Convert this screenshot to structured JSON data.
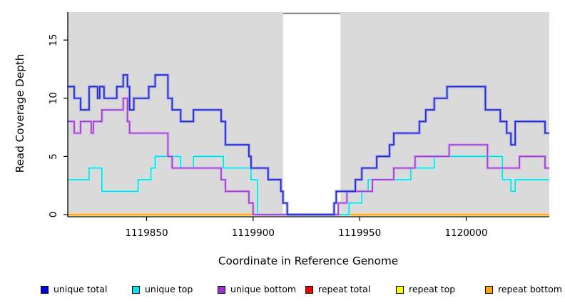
{
  "chart_data": {
    "type": "line",
    "step_interpolation": true,
    "title": "",
    "xlabel": "Coordinate in Reference Genome",
    "ylabel": "Read Coverage Depth",
    "xlim": [
      1119813,
      1120039
    ],
    "ylim": [
      0,
      17.4
    ],
    "xticks": [
      1119850,
      1119900,
      1119950,
      1120000
    ],
    "yticks": [
      0,
      5,
      10,
      15
    ],
    "grid": false,
    "legend_position": "bottom",
    "plot_background": "#DADADA",
    "axis_color": "#000000",
    "gap_region": {
      "from": 1119914,
      "to": 1119941,
      "fill": "#FFFFFF",
      "top_border": "#8C8C8C"
    },
    "draw_order": [
      "repeat total",
      "repeat top",
      "repeat bottom",
      "unique top",
      "unique bottom",
      "unique total"
    ],
    "series": [
      {
        "name": "unique total",
        "color": "#2526CE",
        "halo": "#8F9BF0",
        "points": [
          [
            1119813,
            11
          ],
          [
            1119816,
            10
          ],
          [
            1119819,
            9
          ],
          [
            1119823,
            11
          ],
          [
            1119827,
            10
          ],
          [
            1119828,
            11
          ],
          [
            1119830,
            10
          ],
          [
            1119836,
            11
          ],
          [
            1119839,
            12
          ],
          [
            1119841,
            11
          ],
          [
            1119842,
            9
          ],
          [
            1119844,
            10
          ],
          [
            1119851,
            11
          ],
          [
            1119854,
            12
          ],
          [
            1119860,
            10
          ],
          [
            1119862,
            9
          ],
          [
            1119866,
            8
          ],
          [
            1119872,
            9
          ],
          [
            1119885,
            8
          ],
          [
            1119887,
            6
          ],
          [
            1119898,
            5
          ],
          [
            1119899,
            4
          ],
          [
            1119907,
            3
          ],
          [
            1119913,
            2
          ],
          [
            1119914,
            1
          ],
          [
            1119916,
            0
          ],
          [
            1119938,
            1
          ],
          [
            1119939,
            2
          ],
          [
            1119948,
            3
          ],
          [
            1119951,
            4
          ],
          [
            1119958,
            5
          ],
          [
            1119964,
            6
          ],
          [
            1119966,
            7
          ],
          [
            1119978,
            8
          ],
          [
            1119981,
            9
          ],
          [
            1119985,
            10
          ],
          [
            1119991,
            11
          ],
          [
            1120009,
            9
          ],
          [
            1120016,
            8
          ],
          [
            1120019,
            7
          ],
          [
            1120021,
            6
          ],
          [
            1120023,
            8
          ],
          [
            1120037,
            7
          ]
        ]
      },
      {
        "name": "unique top",
        "color": "#00DFE8",
        "halo": "#B5F6F6",
        "points": [
          [
            1119813,
            3
          ],
          [
            1119823,
            4
          ],
          [
            1119829,
            2
          ],
          [
            1119846,
            3
          ],
          [
            1119852,
            4
          ],
          [
            1119854,
            5
          ],
          [
            1119866,
            4
          ],
          [
            1119872,
            5
          ],
          [
            1119886,
            4
          ],
          [
            1119899,
            3
          ],
          [
            1119902,
            0
          ],
          [
            1119945,
            1
          ],
          [
            1119951,
            2
          ],
          [
            1119954,
            3
          ],
          [
            1119974,
            4
          ],
          [
            1119985,
            5
          ],
          [
            1120017,
            3
          ],
          [
            1120021,
            2
          ],
          [
            1120023,
            3
          ]
        ]
      },
      {
        "name": "unique bottom",
        "color": "#9B3FD1",
        "halo": "#D9A7EC",
        "points": [
          [
            1119813,
            8
          ],
          [
            1119816,
            7
          ],
          [
            1119819,
            8
          ],
          [
            1119824,
            7
          ],
          [
            1119825,
            8
          ],
          [
            1119829,
            9
          ],
          [
            1119839,
            10
          ],
          [
            1119841,
            8
          ],
          [
            1119842,
            7
          ],
          [
            1119860,
            5
          ],
          [
            1119862,
            4
          ],
          [
            1119885,
            3
          ],
          [
            1119887,
            2
          ],
          [
            1119898,
            1
          ],
          [
            1119900,
            0
          ],
          [
            1119940,
            1
          ],
          [
            1119944,
            2
          ],
          [
            1119956,
            3
          ],
          [
            1119966,
            4
          ],
          [
            1119976,
            5
          ],
          [
            1119992,
            6
          ],
          [
            1120010,
            4
          ],
          [
            1120025,
            5
          ],
          [
            1120037,
            4
          ]
        ]
      },
      {
        "name": "repeat total",
        "color": "#E00000",
        "halo": "#F28A8A",
        "points": [
          [
            1119813,
            0
          ]
        ]
      },
      {
        "name": "repeat top",
        "color": "#FFFF00",
        "halo": "#FFFF99",
        "points": [
          [
            1119813,
            0
          ]
        ]
      },
      {
        "name": "repeat bottom",
        "color": "#FFA500",
        "halo": "#FFD27F",
        "points": [
          [
            1119813,
            0
          ]
        ]
      }
    ]
  },
  "legend": {
    "items": [
      {
        "label": "unique total",
        "color": "#0000E0"
      },
      {
        "label": "unique top",
        "color": "#00E5EE"
      },
      {
        "label": "unique bottom",
        "color": "#9932CC"
      },
      {
        "label": "repeat total",
        "color": "#EE0000"
      },
      {
        "label": "repeat top",
        "color": "#FFFF00"
      },
      {
        "label": "repeat bottom",
        "color": "#FFA500"
      }
    ]
  }
}
